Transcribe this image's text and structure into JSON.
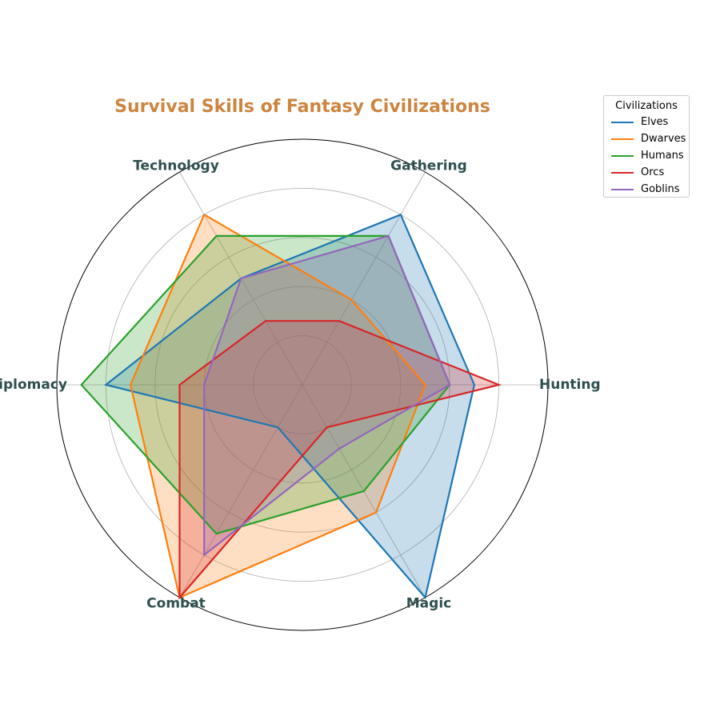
{
  "chart_data": {
    "type": "radar",
    "title": "Survival Skills of Fantasy Civilizations",
    "axes": [
      "Hunting",
      "Gathering",
      "Technology",
      "Diplomacy",
      "Combat",
      "Magic"
    ],
    "rlim": [
      0,
      10
    ],
    "grid": true,
    "legend": {
      "title": "Civilizations",
      "placement": "top-right"
    },
    "series": [
      {
        "name": "Elves",
        "color": "#1f77b4",
        "values": [
          7,
          8,
          5,
          8,
          2,
          10
        ]
      },
      {
        "name": "Dwarves",
        "color": "#ff7f0e",
        "values": [
          5,
          4,
          8,
          7,
          10,
          6
        ]
      },
      {
        "name": "Humans",
        "color": "#2ca02c",
        "values": [
          6,
          7,
          7,
          9,
          7,
          5
        ]
      },
      {
        "name": "Orcs",
        "color": "#d62728",
        "values": [
          8,
          3,
          3,
          5,
          10,
          2
        ]
      },
      {
        "name": "Goblins",
        "color": "#9467bd",
        "values": [
          6,
          7,
          5,
          4,
          8,
          3
        ]
      }
    ]
  }
}
